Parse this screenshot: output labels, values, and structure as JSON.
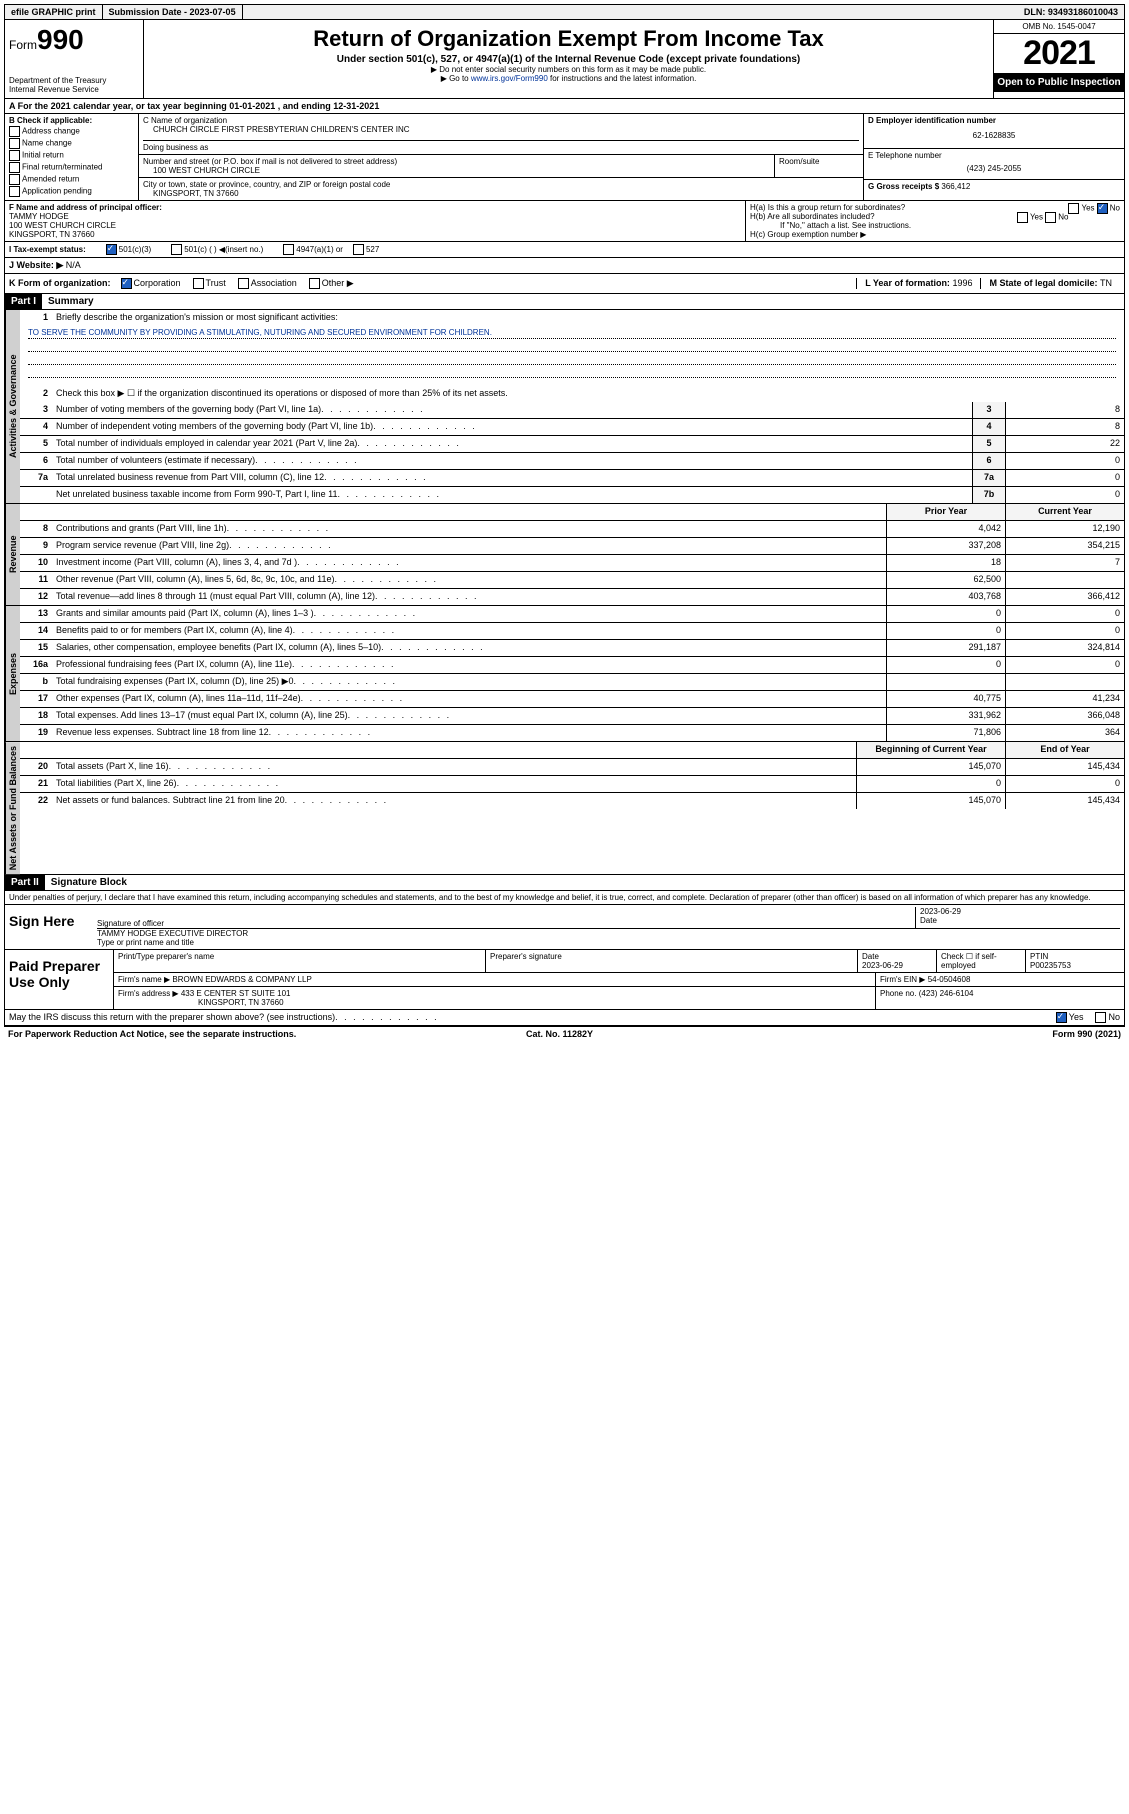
{
  "topbar": {
    "efile": "efile GRAPHIC print",
    "sub_label": "Submission Date - ",
    "sub_date": "2023-07-05",
    "dln_label": "DLN: ",
    "dln": "93493186010043"
  },
  "header": {
    "form_label": "Form",
    "form_num": "990",
    "dept": "Department of the Treasury",
    "irs": "Internal Revenue Service",
    "title": "Return of Organization Exempt From Income Tax",
    "sub": "Under section 501(c), 527, or 4947(a)(1) of the Internal Revenue Code (except private foundations)",
    "note1": "▶ Do not enter social security numbers on this form as it may be made public.",
    "note2_pre": "▶ Go to ",
    "note2_link": "www.irs.gov/Form990",
    "note2_post": " for instructions and the latest information.",
    "omb": "OMB No. 1545-0047",
    "year": "2021",
    "inspect": "Open to Public Inspection"
  },
  "row_a": "A  For the 2021 calendar year, or tax year beginning 01-01-2021   , and ending 12-31-2021",
  "box_b": {
    "title": "B Check if applicable:",
    "items": [
      "Address change",
      "Name change",
      "Initial return",
      "Final return/terminated",
      "Amended return",
      "Application pending"
    ]
  },
  "box_c": {
    "name_label": "C Name of organization",
    "name": "CHURCH CIRCLE FIRST PRESBYTERIAN CHILDREN'S CENTER INC",
    "dba_label": "Doing business as",
    "dba": "",
    "street_label": "Number and street (or P.O. box if mail is not delivered to street address)",
    "street": "100 WEST CHURCH CIRCLE",
    "room_label": "Room/suite",
    "room": "",
    "city_label": "City or town, state or province, country, and ZIP or foreign postal code",
    "city": "KINGSPORT, TN  37660"
  },
  "box_de": {
    "d_label": "D Employer identification number",
    "d_val": "62-1628835",
    "e_label": "E Telephone number",
    "e_val": "(423) 245-2055",
    "g_label": "G Gross receipts $ ",
    "g_val": "366,412"
  },
  "box_f": {
    "label": "F  Name and address of principal officer:",
    "name": "TAMMY HODGE",
    "street": "100 WEST CHURCH CIRCLE",
    "city": "KINGSPORT, TN  37660"
  },
  "box_h": {
    "ha": "H(a)  Is this a group return for subordinates?",
    "ha_yes": "Yes",
    "ha_no": "No",
    "hb": "H(b)  Are all subordinates included?",
    "hb_yes": "Yes",
    "hb_no": "No",
    "hb_note": "If \"No,\" attach a list. See instructions.",
    "hc": "H(c)  Group exemption number ▶"
  },
  "row_i": {
    "label": "I   Tax-exempt status:",
    "opts": [
      "501(c)(3)",
      "501(c) (  ) ◀(insert no.)",
      "4947(a)(1) or",
      "527"
    ]
  },
  "row_j": {
    "label": "J   Website: ▶ ",
    "val": "N/A"
  },
  "row_k": {
    "label": "K Form of organization:",
    "opts": [
      "Corporation",
      "Trust",
      "Association",
      "Other ▶"
    ],
    "l_label": "L Year of formation: ",
    "l_val": "1996",
    "m_label": "M State of legal domicile: ",
    "m_val": "TN"
  },
  "part1": {
    "num": "Part I",
    "title": "Summary"
  },
  "summary": {
    "q1": "Briefly describe the organization's mission or most significant activities:",
    "mission": "TO SERVE THE COMMUNITY BY PROVIDING A STIMULATING, NUTURING AND SECURED ENVIRONMENT FOR CHILDREN.",
    "q2": "Check this box ▶ ☐  if the organization discontinued its operations or disposed of more than 25% of its net assets.",
    "lines_gov": [
      {
        "n": "3",
        "t": "Number of voting members of the governing body (Part VI, line 1a)",
        "bn": "3",
        "v": "8"
      },
      {
        "n": "4",
        "t": "Number of independent voting members of the governing body (Part VI, line 1b)",
        "bn": "4",
        "v": "8"
      },
      {
        "n": "5",
        "t": "Total number of individuals employed in calendar year 2021 (Part V, line 2a)",
        "bn": "5",
        "v": "22"
      },
      {
        "n": "6",
        "t": "Total number of volunteers (estimate if necessary)",
        "bn": "6",
        "v": "0"
      },
      {
        "n": "7a",
        "t": "Total unrelated business revenue from Part VIII, column (C), line 12",
        "bn": "7a",
        "v": "0"
      },
      {
        "n": "",
        "t": "Net unrelated business taxable income from Form 990-T, Part I, line 11",
        "bn": "7b",
        "v": "0"
      }
    ],
    "col_hdr_prior": "Prior Year",
    "col_hdr_curr": "Current Year",
    "lines_rev": [
      {
        "n": "8",
        "t": "Contributions and grants (Part VIII, line 1h)",
        "p": "4,042",
        "c": "12,190"
      },
      {
        "n": "9",
        "t": "Program service revenue (Part VIII, line 2g)",
        "p": "337,208",
        "c": "354,215"
      },
      {
        "n": "10",
        "t": "Investment income (Part VIII, column (A), lines 3, 4, and 7d )",
        "p": "18",
        "c": "7"
      },
      {
        "n": "11",
        "t": "Other revenue (Part VIII, column (A), lines 5, 6d, 8c, 9c, 10c, and 11e)",
        "p": "62,500",
        "c": ""
      },
      {
        "n": "12",
        "t": "Total revenue—add lines 8 through 11 (must equal Part VIII, column (A), line 12)",
        "p": "403,768",
        "c": "366,412"
      }
    ],
    "lines_exp": [
      {
        "n": "13",
        "t": "Grants and similar amounts paid (Part IX, column (A), lines 1–3 )",
        "p": "0",
        "c": "0"
      },
      {
        "n": "14",
        "t": "Benefits paid to or for members (Part IX, column (A), line 4)",
        "p": "0",
        "c": "0"
      },
      {
        "n": "15",
        "t": "Salaries, other compensation, employee benefits (Part IX, column (A), lines 5–10)",
        "p": "291,187",
        "c": "324,814"
      },
      {
        "n": "16a",
        "t": "Professional fundraising fees (Part IX, column (A), line 11e)",
        "p": "0",
        "c": "0"
      },
      {
        "n": "b",
        "t": "Total fundraising expenses (Part IX, column (D), line 25) ▶0",
        "p": "",
        "c": ""
      },
      {
        "n": "17",
        "t": "Other expenses (Part IX, column (A), lines 11a–11d, 11f–24e)",
        "p": "40,775",
        "c": "41,234"
      },
      {
        "n": "18",
        "t": "Total expenses. Add lines 13–17 (must equal Part IX, column (A), line 25)",
        "p": "331,962",
        "c": "366,048"
      },
      {
        "n": "19",
        "t": "Revenue less expenses. Subtract line 18 from line 12",
        "p": "71,806",
        "c": "364"
      }
    ],
    "col_hdr_beg": "Beginning of Current Year",
    "col_hdr_end": "End of Year",
    "lines_na": [
      {
        "n": "20",
        "t": "Total assets (Part X, line 16)",
        "p": "145,070",
        "c": "145,434"
      },
      {
        "n": "21",
        "t": "Total liabilities (Part X, line 26)",
        "p": "0",
        "c": "0"
      },
      {
        "n": "22",
        "t": "Net assets or fund balances. Subtract line 21 from line 20",
        "p": "145,070",
        "c": "145,434"
      }
    ]
  },
  "vtabs": {
    "gov": "Activities & Governance",
    "rev": "Revenue",
    "exp": "Expenses",
    "na": "Net Assets or Fund Balances"
  },
  "part2": {
    "num": "Part II",
    "title": "Signature Block"
  },
  "sig": {
    "decl": "Under penalties of perjury, I declare that I have examined this return, including accompanying schedules and statements, and to the best of my knowledge and belief, it is true, correct, and complete. Declaration of preparer (other than officer) is based on all information of which preparer has any knowledge.",
    "sign_here": "Sign Here",
    "sig_officer": "Signature of officer",
    "date_l": "Date",
    "date_v": "2023-06-29",
    "name": "TAMMY HODGE  EXECUTIVE DIRECTOR",
    "name_l": "Type or print name and title"
  },
  "prep": {
    "label": "Paid Preparer Use Only",
    "h1": "Print/Type preparer's name",
    "h2": "Preparer's signature",
    "h3_l": "Date",
    "h3_v": "2023-06-29",
    "h4_l": "Check ☐ if self-employed",
    "h5_l": "PTIN",
    "h5_v": "P00235753",
    "firm_name_l": "Firm's name      ▶ ",
    "firm_name": "BROWN EDWARDS & COMPANY LLP",
    "firm_ein_l": "Firm's EIN ▶ ",
    "firm_ein": "54-0504608",
    "firm_addr_l": "Firm's address ▶ ",
    "firm_addr": "433 E CENTER ST SUITE 101",
    "firm_city": "KINGSPORT, TN  37660",
    "phone_l": "Phone no. ",
    "phone": "(423) 246-6104"
  },
  "discuss": {
    "q": "May the IRS discuss this return with the preparer shown above? (see instructions)",
    "yes": "Yes",
    "no": "No"
  },
  "footer": {
    "l": "For Paperwork Reduction Act Notice, see the separate instructions.",
    "m": "Cat. No. 11282Y",
    "r": "Form 990 (2021)"
  }
}
